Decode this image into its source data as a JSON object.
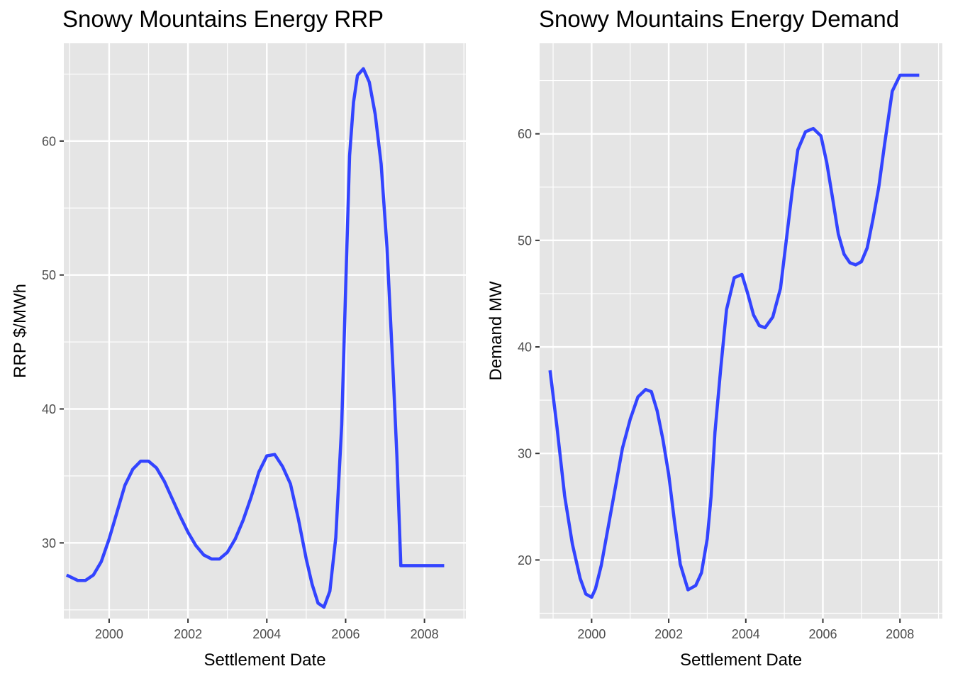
{
  "chart_data": [
    {
      "type": "line",
      "title": "Snowy Mountains Energy RRP",
      "xlabel": "Settlement Date",
      "ylabel": "RRP $/MWh",
      "xlim": [
        1998.85,
        2009.05
      ],
      "ylim": [
        24.35,
        67.3
      ],
      "x_ticks": [
        2000,
        2002,
        2004,
        2006,
        2008
      ],
      "y_ticks": [
        30,
        40,
        50,
        60
      ],
      "grid": true,
      "line_color": "#3344ff",
      "panel_color": "#e5e5e5",
      "series": [
        {
          "x": [
            1998.92,
            1999.2,
            1999.4,
            1999.6,
            1999.8,
            2000.0,
            2000.2,
            2000.4,
            2000.6,
            2000.8,
            2001.0,
            2001.2,
            2001.4,
            2001.6,
            2001.8,
            2002.0,
            2002.2,
            2002.4,
            2002.6,
            2002.8,
            2003.0,
            2003.2,
            2003.4,
            2003.6,
            2003.8,
            2004.0,
            2004.2,
            2004.4,
            2004.6,
            2004.8,
            2005.0,
            2005.15,
            2005.3,
            2005.45,
            2005.6,
            2005.75,
            2005.9,
            2006.0,
            2006.1,
            2006.2,
            2006.3,
            2006.45,
            2006.6,
            2006.75,
            2006.9,
            2007.05,
            2007.2,
            2007.3,
            2007.4,
            2007.5,
            2007.6,
            2007.7,
            2007.8,
            2007.95,
            2008.1,
            2008.25,
            2008.4,
            2008.5
          ],
          "y": [
            27.6,
            27.2,
            27.2,
            27.6,
            28.6,
            30.3,
            32.3,
            34.3,
            35.5,
            36.1,
            36.1,
            35.6,
            34.6,
            33.3,
            32.0,
            30.8,
            29.8,
            29.1,
            28.8,
            28.8,
            29.3,
            30.3,
            31.7,
            33.4,
            35.3,
            36.5,
            36.6,
            35.7,
            34.4,
            31.8,
            28.8,
            26.9,
            25.5,
            25.2,
            26.4,
            30.4,
            38.8,
            49.0,
            58.9,
            62.9,
            64.9,
            65.4,
            64.4,
            62.0,
            58.3,
            52.0,
            43.0,
            36.5,
            28.3,
            28.3,
            28.3,
            28.3,
            28.3,
            28.3,
            28.3,
            28.3,
            28.3,
            28.3
          ]
        }
      ]
    },
    {
      "type": "line",
      "title": "Snowy Mountains Energy Demand",
      "xlabel": "Settlement Date",
      "ylabel": "Demand MW",
      "xlim": [
        1998.65,
        2009.1
      ],
      "ylim": [
        14.5,
        68.5
      ],
      "x_ticks": [
        2000,
        2002,
        2004,
        2006,
        2008
      ],
      "y_ticks": [
        20,
        30,
        40,
        50,
        60
      ],
      "grid": true,
      "line_color": "#3344ff",
      "panel_color": "#e5e5e5",
      "series": [
        {
          "x": [
            1998.92,
            1999.1,
            1999.3,
            1999.5,
            1999.7,
            1999.85,
            2000.0,
            2000.1,
            2000.25,
            2000.4,
            2000.6,
            2000.8,
            2001.0,
            2001.2,
            2001.4,
            2001.55,
            2001.7,
            2001.85,
            2002.0,
            2002.15,
            2002.3,
            2002.5,
            2002.7,
            2002.85,
            2003.0,
            2003.1,
            2003.2,
            2003.35,
            2003.5,
            2003.7,
            2003.9,
            2004.05,
            2004.2,
            2004.35,
            2004.5,
            2004.7,
            2004.9,
            2005.05,
            2005.2,
            2005.35,
            2005.55,
            2005.75,
            2005.95,
            2006.1,
            2006.25,
            2006.4,
            2006.55,
            2006.7,
            2006.85,
            2007.0,
            2007.15,
            2007.3,
            2007.45,
            2007.6,
            2007.8,
            2008.0,
            2008.2,
            2008.35,
            2008.5
          ],
          "y": [
            37.8,
            32.5,
            26.0,
            21.5,
            18.3,
            16.8,
            16.5,
            17.3,
            19.5,
            22.5,
            26.5,
            30.5,
            33.2,
            35.3,
            36.0,
            35.8,
            34.0,
            31.3,
            28.0,
            23.6,
            19.6,
            17.2,
            17.6,
            18.8,
            22.0,
            26.0,
            32.0,
            38.0,
            43.5,
            46.5,
            46.8,
            45.0,
            43.0,
            42.0,
            41.8,
            42.8,
            45.5,
            50.0,
            54.5,
            58.5,
            60.2,
            60.5,
            59.8,
            57.3,
            54.0,
            50.6,
            48.7,
            47.9,
            47.7,
            48.0,
            49.3,
            52.0,
            55.0,
            59.0,
            64.0,
            65.5,
            65.5,
            65.5,
            65.5
          ]
        }
      ]
    }
  ]
}
